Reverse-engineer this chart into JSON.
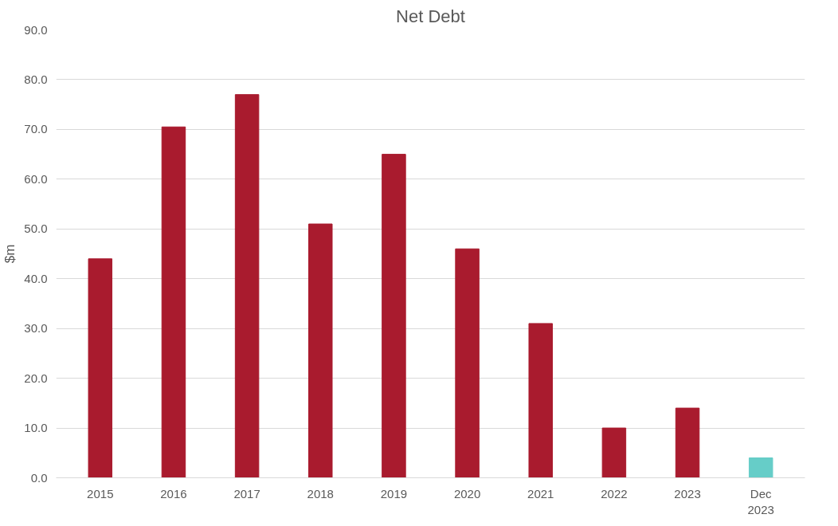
{
  "chart_data": {
    "type": "bar",
    "title": "Net Debt",
    "ylabel": "$m",
    "categories": [
      "2015",
      "2016",
      "2017",
      "2018",
      "2019",
      "2020",
      "2021",
      "2022",
      "2023",
      "Dec\n2023"
    ],
    "values": [
      44,
      70.5,
      77,
      51,
      65,
      46,
      31,
      10,
      14,
      4
    ],
    "colors": [
      "#a91b2e",
      "#a91b2e",
      "#a91b2e",
      "#a91b2e",
      "#a91b2e",
      "#a91b2e",
      "#a91b2e",
      "#a91b2e",
      "#a91b2e",
      "#66cdc8"
    ],
    "ylim": [
      0,
      90
    ],
    "yticks": [
      {
        "value": 0,
        "label": "0.0"
      },
      {
        "value": 10,
        "label": "10.0"
      },
      {
        "value": 20,
        "label": "20.0"
      },
      {
        "value": 30,
        "label": "30.0"
      },
      {
        "value": 40,
        "label": "40.0"
      },
      {
        "value": 50,
        "label": "50.0"
      },
      {
        "value": 60,
        "label": "60.0"
      },
      {
        "value": 70,
        "label": "70.0"
      },
      {
        "value": 80,
        "label": "80.0"
      },
      {
        "value": 90,
        "label": "90.0"
      }
    ],
    "grid": "y"
  }
}
